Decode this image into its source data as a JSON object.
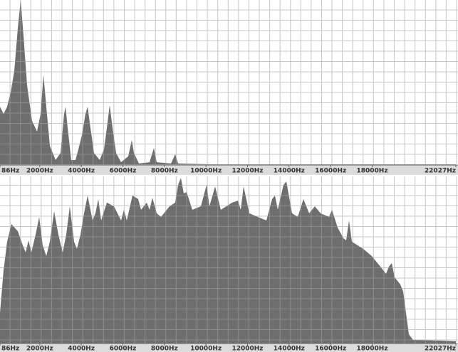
{
  "chart_data": [
    {
      "type": "area",
      "color": "#666666",
      "grid": true,
      "xlim": [
        86,
        22027
      ],
      "ylim": [
        0,
        100
      ],
      "xticks": [
        {
          "value": 86,
          "label": "86Hz"
        },
        {
          "value": 2000,
          "label": "2000Hz"
        },
        {
          "value": 4000,
          "label": "4000Hz"
        },
        {
          "value": 6000,
          "label": "6000Hz"
        },
        {
          "value": 8000,
          "label": "8000Hz"
        },
        {
          "value": 10000,
          "label": "10000Hz"
        },
        {
          "value": 12000,
          "label": "12000Hz"
        },
        {
          "value": 14000,
          "label": "14000Hz"
        },
        {
          "value": 16000,
          "label": "16000Hz"
        },
        {
          "value": 18000,
          "label": "18000Hz"
        },
        {
          "value": 22027,
          "label": "22027Hz"
        }
      ],
      "x": [
        86,
        257,
        429,
        600,
        772,
        943,
        1080,
        1217,
        1389,
        1629,
        1869,
        2040,
        2177,
        2314,
        2486,
        2760,
        3000,
        3172,
        3240,
        3343,
        3514,
        3720,
        3857,
        4029,
        4200,
        4303,
        4440,
        4612,
        4886,
        5092,
        5229,
        5366,
        5503,
        5674,
        5914,
        6257,
        6429,
        6531,
        6771,
        7286,
        7491,
        7629,
        8314,
        8520,
        8657,
        10371,
        22027
      ],
      "values": [
        35.3,
        31.0,
        35.3,
        44.0,
        56.9,
        82.8,
        100,
        78.4,
        48.3,
        26.7,
        20.3,
        31.0,
        54.7,
        35.3,
        11.6,
        3.0,
        7.3,
        31.0,
        35.3,
        22.4,
        3.0,
        3.0,
        9.5,
        18.1,
        31.0,
        35.3,
        22.4,
        7.3,
        3.0,
        9.5,
        22.4,
        36.2,
        22.4,
        7.3,
        1.7,
        5.2,
        15.1,
        7.3,
        0.9,
        1.7,
        10.3,
        1.7,
        0.9,
        6.5,
        0.9,
        0.4,
        0.4
      ]
    },
    {
      "type": "area",
      "color": "#666666",
      "grid": true,
      "xlim": [
        86,
        22027
      ],
      "ylim": [
        0,
        100
      ],
      "xticks": [
        {
          "value": 86,
          "label": "86Hz"
        },
        {
          "value": 2000,
          "label": "2000Hz"
        },
        {
          "value": 4000,
          "label": "4000Hz"
        },
        {
          "value": 6000,
          "label": "6000Hz"
        },
        {
          "value": 8000,
          "label": "8000Hz"
        },
        {
          "value": 10000,
          "label": "10000Hz"
        },
        {
          "value": 12000,
          "label": "12000Hz"
        },
        {
          "value": 14000,
          "label": "14000Hz"
        },
        {
          "value": 16000,
          "label": "16000Hz"
        },
        {
          "value": 18000,
          "label": "18000Hz"
        },
        {
          "value": 22027,
          "label": "22027Hz"
        }
      ],
      "x": [
        86,
        257,
        429,
        635,
        943,
        1183,
        1320,
        1457,
        1594,
        1800,
        1972,
        2143,
        2314,
        2486,
        2692,
        2897,
        3103,
        3274,
        3446,
        3652,
        3789,
        3960,
        4132,
        4303,
        4543,
        4680,
        4817,
        4954,
        5229,
        5571,
        5914,
        6051,
        6189,
        6463,
        6737,
        6874,
        7149,
        7286,
        7423,
        7629,
        7834,
        8246,
        8520,
        8657,
        8794,
        8931,
        9068,
        9343,
        9754,
        10028,
        10166,
        10440,
        10714,
        11263,
        11537,
        11674,
        11811,
        12086,
        12497,
        12908,
        13183,
        13320,
        13457,
        13731,
        13868,
        14143,
        14417,
        14691,
        14965,
        15240,
        15514,
        15925,
        16063,
        16337,
        16611,
        16748,
        16885,
        17022,
        17571,
        17983,
        18394,
        18668,
        18805,
        18942,
        19080,
        19354,
        19491,
        19628,
        19765,
        19971,
        21342,
        22027
      ],
      "values": [
        18.3,
        43.8,
        60.9,
        71.5,
        67.2,
        58.7,
        54.5,
        61.7,
        54.5,
        65.1,
        75.7,
        58.7,
        52.3,
        60.9,
        79.1,
        65.1,
        54.5,
        65.1,
        82.1,
        60.9,
        56.6,
        65.1,
        77.9,
        88.5,
        73.6,
        77.9,
        86.4,
        73.6,
        84.3,
        82.1,
        73.6,
        80.0,
        73.6,
        88.5,
        86.4,
        80.0,
        84.3,
        80.0,
        87.2,
        77.9,
        75.7,
        82.1,
        84.3,
        94.9,
        99.1,
        89.8,
        90.6,
        80.0,
        82.1,
        94.9,
        82.1,
        94.0,
        80.0,
        84.3,
        85.5,
        80.0,
        94.0,
        77.9,
        75.7,
        73.6,
        86.4,
        88.5,
        80.0,
        94.9,
        97.0,
        77.9,
        75.7,
        86.4,
        77.9,
        82.1,
        77.9,
        75.7,
        80.0,
        69.4,
        63.0,
        61.7,
        73.6,
        60.9,
        56.6,
        52.3,
        46.0,
        41.7,
        46.0,
        48.1,
        39.6,
        35.3,
        31.1,
        18.3,
        5.5,
        2.1,
        1.7,
        1.3
      ]
    }
  ]
}
